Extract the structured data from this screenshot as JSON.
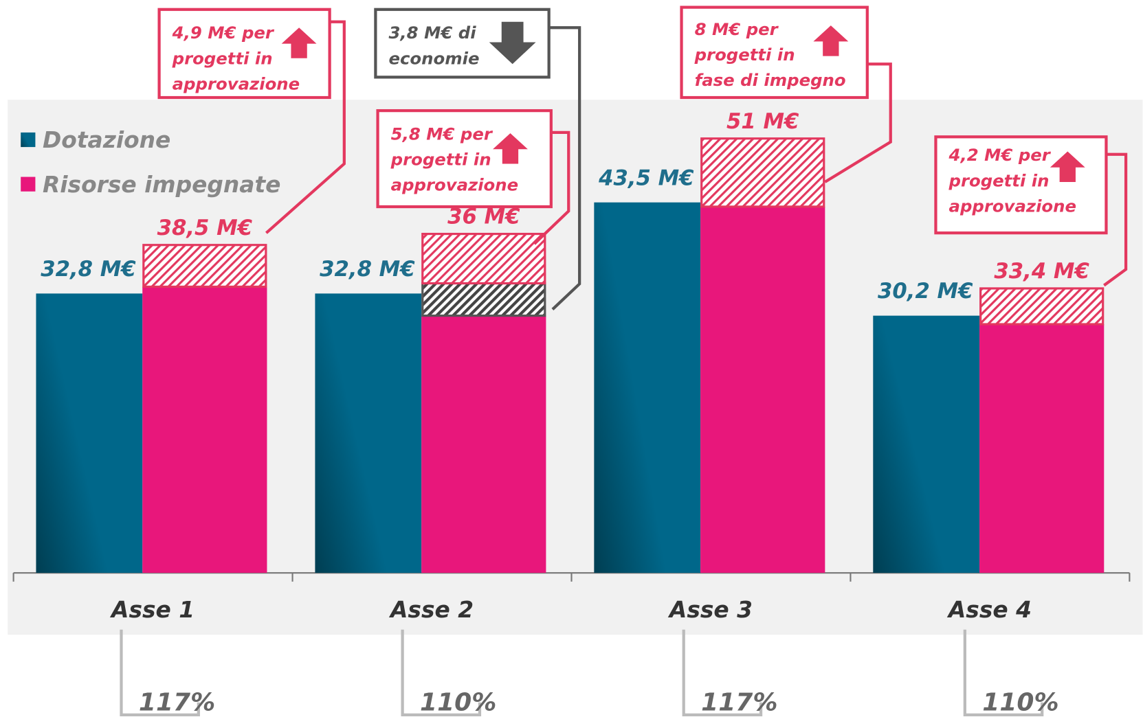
{
  "chart_data": {
    "type": "bar",
    "categories": [
      "Asse 1",
      "Asse 2",
      "Asse 3",
      "Asse 4"
    ],
    "ylim": [
      0,
      60
    ],
    "series": [
      {
        "name": "Dotazione",
        "color": "#00678a",
        "values": [
          32.8,
          32.8,
          43.5,
          30.2
        ],
        "value_labels": [
          "32,8 M€",
          "32,8 M€",
          "43,5 M€",
          "30,2 M€"
        ]
      },
      {
        "name": "Risorse impegnate",
        "color": "#e8177b",
        "values": [
          33.6,
          30.2,
          43,
          29.2
        ]
      }
    ],
    "savings": {
      "color": "#555555",
      "values": [
        null,
        3.8,
        null,
        null
      ]
    },
    "increments": {
      "color": "#e3385f",
      "values": [
        4.9,
        5.8,
        8,
        4.2
      ]
    },
    "totals": {
      "values": [
        38.5,
        36,
        51,
        33.4
      ],
      "value_labels": [
        "38,5 M€",
        "36 M€",
        "51 M€",
        "33,4 M€"
      ]
    },
    "annotations": [
      {
        "lines": [
          "4,9 M€ per",
          "progetti in",
          "approvazione"
        ],
        "color": "#e3385f"
      },
      {
        "lines": [
          "3,8 M€ di",
          "economie"
        ],
        "color": "#555555"
      },
      {
        "lines": [
          "5,8 M€ per",
          "progetti in",
          "approvazione"
        ],
        "color": "#e3385f"
      },
      {
        "lines": [
          "8 M€ per",
          "progetti in",
          "fase di impegno"
        ],
        "color": "#e3385f"
      },
      {
        "lines": [
          "4,2 M€ per",
          "progetti in",
          "approvazione"
        ],
        "color": "#e3385f"
      }
    ],
    "ratios": {
      "values": [
        117,
        110,
        117,
        110
      ],
      "value_labels": [
        "117%",
        "110%",
        "117%",
        "110%"
      ]
    }
  }
}
